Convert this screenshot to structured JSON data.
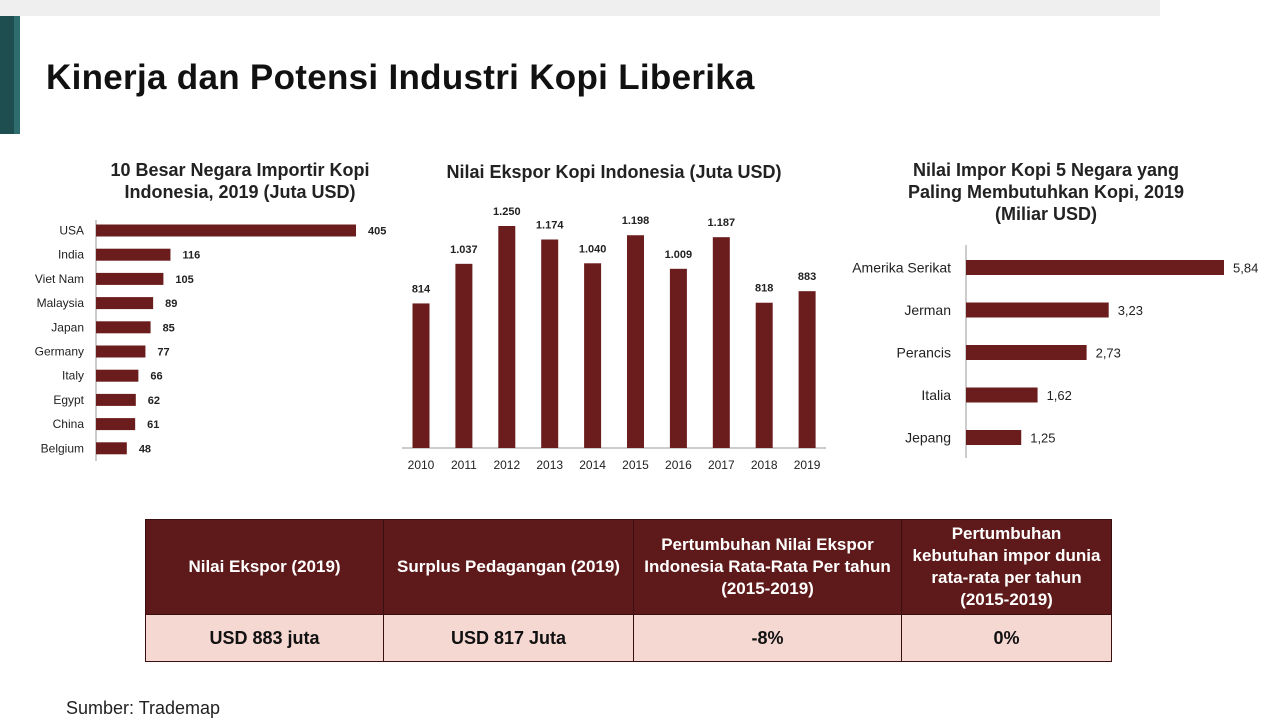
{
  "page": {
    "title": "Kinerja dan Potensi Industri Kopi Liberika",
    "source": "Sumber: Trademap"
  },
  "colors": {
    "bar": "#6b1c1c",
    "table_header": "#5e1a1a",
    "table_row": "#f6d8d3",
    "accent": "#1f4e50"
  },
  "chart_data": [
    {
      "type": "bar",
      "orientation": "horizontal",
      "title_lines": [
        "10 Besar Negara Importir Kopi",
        "Indonesia, 2019 (Juta USD)"
      ],
      "categories": [
        "USA",
        "India",
        "Viet Nam",
        "Malaysia",
        "Japan",
        "Germany",
        "Italy",
        "Egypt",
        "China",
        "Belgium"
      ],
      "values": [
        405,
        116,
        105,
        89,
        85,
        77,
        66,
        62,
        61,
        48
      ],
      "value_labels": [
        "405",
        "116",
        "105",
        "89",
        "85",
        "77",
        "66",
        "62",
        "61",
        "48"
      ],
      "xlim": [
        0,
        405
      ],
      "grid": false
    },
    {
      "type": "bar",
      "orientation": "vertical",
      "title_lines": [
        "Nilai Ekspor Kopi Indonesia (Juta USD)"
      ],
      "categories": [
        "2010",
        "2011",
        "2012",
        "2013",
        "2014",
        "2015",
        "2016",
        "2017",
        "2018",
        "2019"
      ],
      "values": [
        814,
        1037,
        1250,
        1174,
        1040,
        1198,
        1009,
        1187,
        818,
        883
      ],
      "value_labels": [
        "814",
        "1.037",
        "1.250",
        "1.174",
        "1.040",
        "1.198",
        "1.009",
        "1.187",
        "818",
        "883"
      ],
      "ylim": [
        0,
        1250
      ],
      "grid": false
    },
    {
      "type": "bar",
      "orientation": "horizontal",
      "title_lines": [
        "Nilai Impor Kopi 5 Negara yang",
        "Paling Membutuhkan Kopi, 2019",
        "(Miliar USD)"
      ],
      "categories": [
        "Amerika Serikat",
        "Jerman",
        "Perancis",
        "Italia",
        "Jepang"
      ],
      "values": [
        5.84,
        3.23,
        2.73,
        1.62,
        1.25
      ],
      "value_labels": [
        "5,84",
        "3,23",
        "2,73",
        "1,62",
        "1,25"
      ],
      "xlim": [
        0,
        5.84
      ],
      "grid": false
    }
  ],
  "table": {
    "headers": [
      "Nilai Ekspor (2019)",
      "Surplus Pedagangan (2019)",
      "Pertumbuhan Nilai Ekspor Indonesia Rata-Rata Per tahun (2015-2019)",
      "Pertumbuhan kebutuhan impor dunia rata-rata per tahun (2015-2019)"
    ],
    "row": [
      "USD 883 juta",
      "USD 817 Juta",
      "-8%",
      "0%"
    ]
  }
}
